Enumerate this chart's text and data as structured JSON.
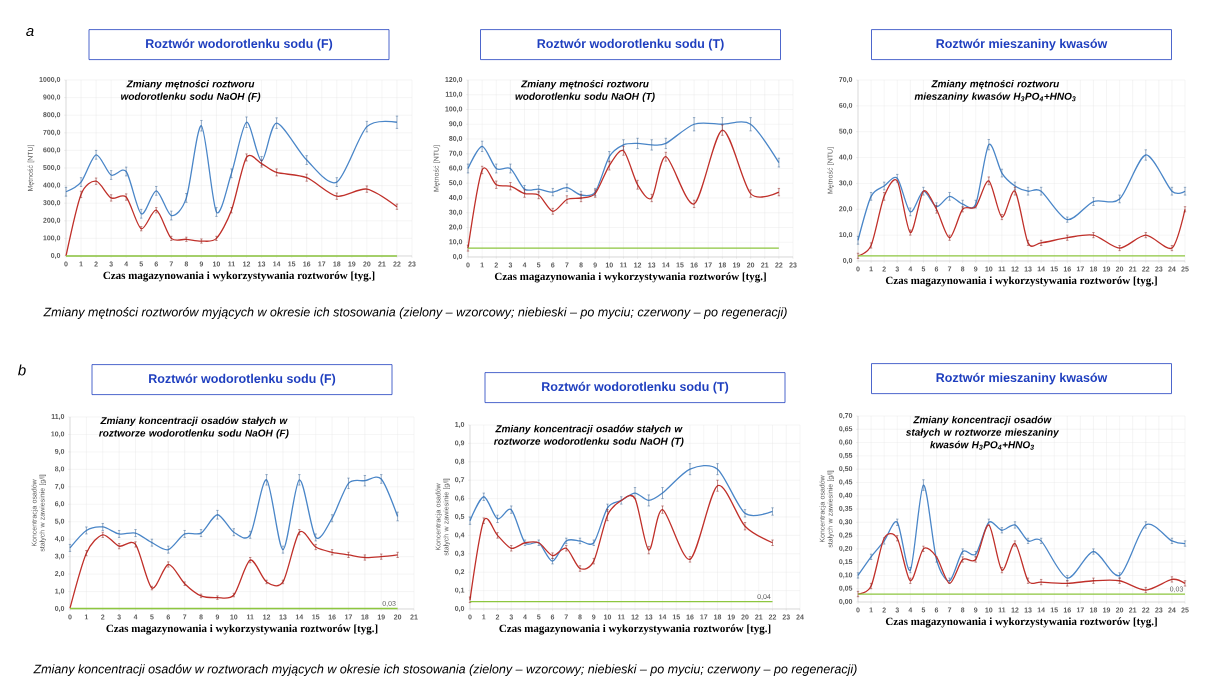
{
  "chart_data": [
    {
      "type": "line",
      "title": "Roztwór  wodorotlenku sodu (F)",
      "subtitle": "Zmiany mętności roztworu wodorotlenku sodu NaOH (F)",
      "xlabel": "Czas magazynowania i wykorzystywania roztworów [tyg.]",
      "ylabel": "Mętność [NTU]",
      "xlim": [
        0,
        23
      ],
      "xticks": [
        0,
        1,
        2,
        3,
        4,
        5,
        6,
        7,
        8,
        9,
        10,
        11,
        12,
        13,
        14,
        15,
        16,
        17,
        18,
        19,
        20,
        21,
        22,
        23
      ],
      "ylim": [
        0,
        1000
      ],
      "yticks": [
        {
          "value": 0,
          "label": "0,0"
        },
        {
          "value": 100,
          "label": "100,0"
        },
        {
          "value": 200,
          "label": "200,0"
        },
        {
          "value": 300,
          "label": "300,0"
        },
        {
          "value": 400,
          "label": "400,0"
        },
        {
          "value": 500,
          "label": "500,0"
        },
        {
          "value": 600,
          "label": "600,0"
        },
        {
          "value": 700,
          "label": "700,0"
        },
        {
          "value": 800,
          "label": "800,0"
        },
        {
          "value": 900,
          "label": "900,0"
        },
        {
          "value": 1000,
          "label": "1000,0"
        }
      ],
      "grid": true,
      "series": [
        {
          "color": "#4a86c8",
          "x": [
            0,
            1,
            2,
            3,
            4,
            5,
            6,
            7,
            8,
            9,
            10,
            11,
            12,
            13,
            14,
            16,
            18,
            20,
            22
          ],
          "values": [
            365,
            420,
            575,
            460,
            480,
            240,
            370,
            230,
            330,
            740,
            250,
            470,
            760,
            540,
            755,
            545,
            420,
            735,
            760
          ],
          "errors": [
            25,
            25,
            25,
            25,
            25,
            25,
            25,
            25,
            25,
            30,
            25,
            25,
            30,
            25,
            30,
            25,
            25,
            30,
            35
          ]
        },
        {
          "color": "#c0302a",
          "x": [
            0,
            1,
            2,
            3,
            4,
            5,
            6,
            7,
            8,
            9,
            10,
            11,
            12,
            13,
            14,
            16,
            18,
            20,
            22
          ],
          "values": [
            0,
            350,
            425,
            330,
            335,
            155,
            260,
            100,
            95,
            85,
            100,
            260,
            560,
            525,
            475,
            445,
            340,
            380,
            280
          ],
          "errors": [
            null,
            18,
            18,
            18,
            18,
            12,
            15,
            12,
            12,
            12,
            12,
            15,
            20,
            20,
            20,
            20,
            18,
            18,
            15
          ]
        },
        {
          "color": "#8dc63f",
          "x": [
            0,
            22
          ],
          "values": [
            0,
            0
          ]
        }
      ],
      "annotations": [
        "a",
        "Zmiany mętności roztworów myjących w okresie ich stosowania (zielony – wzorcowy; niebieski – po myciu; czerwony – po regeneracji)"
      ]
    },
    {
      "type": "line",
      "title": "Roztwór  wodorotlenku sodu (T)",
      "subtitle": "Zmiany mętności roztworu wodorotlenku sodu NaOH (T)",
      "xlabel": "Czas magazynowania i wykorzystywania roztworów [tyg.]",
      "ylabel": "Mętność [NTU]",
      "xlim": [
        0,
        23
      ],
      "xticks": [
        0,
        1,
        2,
        3,
        4,
        5,
        6,
        7,
        8,
        9,
        10,
        11,
        12,
        13,
        14,
        15,
        16,
        17,
        18,
        19,
        20,
        21,
        22,
        23
      ],
      "ylim": [
        0,
        120
      ],
      "yticks": [
        {
          "value": 0,
          "label": "0,0"
        },
        {
          "value": 10,
          "label": "10,0"
        },
        {
          "value": 20,
          "label": "20,0"
        },
        {
          "value": 30,
          "label": "30,0"
        },
        {
          "value": 40,
          "label": "40,0"
        },
        {
          "value": 50,
          "label": "50,0"
        },
        {
          "value": 60,
          "label": "60,0"
        },
        {
          "value": 70,
          "label": "70,0"
        },
        {
          "value": 80,
          "label": "80,0"
        },
        {
          "value": 90,
          "label": "90,0"
        },
        {
          "value": 100,
          "label": "100,0"
        },
        {
          "value": 110,
          "label": "110,0"
        },
        {
          "value": 120,
          "label": "120,0"
        }
      ],
      "grid": true,
      "series": [
        {
          "color": "#4a86c8",
          "x": [
            0,
            1,
            2,
            3,
            4,
            5,
            6,
            7,
            8,
            9,
            10,
            11,
            12,
            13,
            14,
            16,
            18,
            20,
            22
          ],
          "values": [
            60,
            75,
            60,
            60,
            46,
            46,
            44,
            47,
            42,
            44,
            68,
            76,
            77,
            76,
            77,
            90,
            90,
            90,
            64
          ],
          "errors": [
            3,
            3.5,
            3,
            3,
            2.5,
            2.5,
            2.5,
            2.5,
            2.5,
            2.5,
            3.5,
            3.5,
            3.5,
            3.5,
            3.5,
            4.5,
            4.5,
            4.5,
            3
          ]
        },
        {
          "color": "#c0302a",
          "x": [
            0,
            1,
            2,
            3,
            4,
            5,
            6,
            7,
            8,
            9,
            10,
            11,
            12,
            13,
            14,
            16,
            18,
            20,
            22
          ],
          "values": [
            6,
            59,
            49,
            48,
            43,
            42,
            31,
            39,
            40,
            43,
            62,
            72,
            49,
            40,
            68,
            36,
            86,
            43,
            44
          ],
          "errors": [
            2,
            2.5,
            2.5,
            2.5,
            2.5,
            2.5,
            2,
            2.5,
            2.5,
            2.5,
            3,
            3,
            3,
            2.5,
            3,
            2.5,
            3.5,
            2.5,
            2.5
          ]
        },
        {
          "color": "#8dc63f",
          "x": [
            0,
            22
          ],
          "values": [
            6,
            6
          ]
        }
      ]
    },
    {
      "type": "line",
      "title": "Roztwór mieszaniny kwasów",
      "subtitle": "Zmiany mętności roztworu mieszaniny kwasów H$_{3}$PO$_{4}$+HNO$_{3}$",
      "xlabel": "Czas magazynowania i wykorzystywania roztworów [tyg.]",
      "ylabel": "Mętność [NTU]",
      "xlim": [
        0,
        25
      ],
      "xticks": [
        0,
        1,
        2,
        3,
        4,
        5,
        6,
        7,
        8,
        9,
        10,
        11,
        12,
        13,
        14,
        15,
        16,
        17,
        18,
        19,
        20,
        21,
        22,
        23,
        24,
        25
      ],
      "ylim": [
        0,
        70
      ],
      "yticks": [
        {
          "value": 0,
          "label": "0,0"
        },
        {
          "value": 10,
          "label": "10,0"
        },
        {
          "value": 20,
          "label": "20,0"
        },
        {
          "value": 30,
          "label": "30,0"
        },
        {
          "value": 40,
          "label": "40,0"
        },
        {
          "value": 50,
          "label": "50,0"
        },
        {
          "value": 60,
          "label": "60,0"
        },
        {
          "value": 70,
          "label": "70,0"
        }
      ],
      "grid": true,
      "series": [
        {
          "color": "#4a86c8",
          "x": [
            0,
            1,
            2,
            3,
            4,
            5,
            6,
            7,
            8,
            9,
            10,
            11,
            12,
            13,
            14,
            16,
            18,
            20,
            22,
            24,
            25
          ],
          "values": [
            8,
            25,
            29,
            32,
            19,
            27,
            21,
            25,
            22,
            22,
            45,
            34,
            29,
            27,
            27,
            16,
            23,
            24,
            41,
            27,
            27
          ],
          "errors": [
            1.5,
            1.5,
            1.5,
            1.5,
            1.5,
            1.5,
            1.5,
            1.5,
            1.5,
            1.5,
            2,
            1.5,
            1.5,
            1.5,
            1.5,
            1,
            1.5,
            1.5,
            2,
            1.5,
            1.5
          ]
        },
        {
          "color": "#c0302a",
          "x": [
            0,
            1,
            2,
            3,
            4,
            5,
            6,
            7,
            8,
            9,
            10,
            11,
            12,
            13,
            14,
            16,
            18,
            20,
            22,
            24,
            25
          ],
          "values": [
            2,
            6,
            25,
            31,
            11,
            27,
            20,
            9,
            20,
            21,
            31,
            17,
            27,
            7,
            7,
            9,
            10,
            5,
            10,
            5,
            20
          ],
          "errors": [
            1,
            1,
            1.5,
            null,
            1,
            null,
            1.5,
            1,
            1,
            null,
            1.5,
            1,
            1.5,
            1,
            1,
            1,
            1,
            1,
            1,
            1,
            1
          ]
        },
        {
          "color": "#8dc63f",
          "x": [
            0,
            25
          ],
          "values": [
            2,
            2
          ]
        }
      ]
    },
    {
      "type": "line",
      "title": "Roztwór  wodorotlenku sodu (F)",
      "subtitle": "Zmiany koncentracji osadów stałych w roztworze wodorotlenku sodu NaOH (F)",
      "xlabel": "Czas magazynowania i wykorzystywania roztworów [tyg.]",
      "ylabel": "Koncentracja osadów stałych w zawiesinie  [g/l]",
      "xlim": [
        0,
        21
      ],
      "xticks": [
        0,
        1,
        2,
        3,
        4,
        5,
        6,
        7,
        8,
        9,
        10,
        11,
        12,
        13,
        14,
        15,
        16,
        17,
        18,
        19,
        20,
        21
      ],
      "ylim": [
        0,
        11
      ],
      "yticks": [
        {
          "value": 0,
          "label": "0,0"
        },
        {
          "value": 1,
          "label": "1,0"
        },
        {
          "value": 2,
          "label": "2,0"
        },
        {
          "value": 3,
          "label": "3,0"
        },
        {
          "value": 4,
          "label": "4,0"
        },
        {
          "value": 5,
          "label": "5,0"
        },
        {
          "value": 6,
          "label": "6,0"
        },
        {
          "value": 7,
          "label": "7,0"
        },
        {
          "value": 8,
          "label": "8,0"
        },
        {
          "value": 9,
          "label": "9,0"
        },
        {
          "value": 10,
          "label": "10,0"
        },
        {
          "value": 11,
          "label": "11,0"
        }
      ],
      "grid": true,
      "series": [
        {
          "color": "#4a86c8",
          "x": [
            0,
            1,
            2,
            3,
            4,
            5,
            6,
            7,
            8,
            9,
            10,
            11,
            12,
            13,
            14,
            15,
            16,
            17,
            18,
            19,
            20
          ],
          "values": [
            3.5,
            4.5,
            4.7,
            4.3,
            4.35,
            3.8,
            3.4,
            4.3,
            4.35,
            5.4,
            4.4,
            4.25,
            7.4,
            3.4,
            7.4,
            4.1,
            5.2,
            7.2,
            7.35,
            7.45,
            5.3
          ],
          "errors": [
            0.2,
            0.2,
            0.2,
            0.2,
            0.2,
            0.2,
            0.2,
            0.2,
            0.2,
            0.25,
            0.2,
            0.2,
            0.3,
            0.2,
            0.3,
            0.2,
            0.2,
            0.3,
            0.3,
            0.25,
            0.25
          ]
        },
        {
          "color": "#c0302a",
          "x": [
            0,
            1,
            2,
            3,
            4,
            5,
            6,
            7,
            8,
            9,
            10,
            11,
            12,
            13,
            14,
            15,
            16,
            17,
            18,
            19,
            20
          ],
          "values": [
            0.05,
            3.2,
            4.25,
            3.6,
            3.7,
            1.2,
            2.55,
            1.45,
            0.75,
            0.65,
            0.8,
            2.8,
            1.55,
            1.55,
            4.4,
            3.55,
            3.25,
            3.1,
            2.95,
            3.0,
            3.1
          ],
          "errors": [
            null,
            0.15,
            0.15,
            0.15,
            0.15,
            0.1,
            0.15,
            0.1,
            0.1,
            0.1,
            0.1,
            0.15,
            0.1,
            0.1,
            0.15,
            0.15,
            0.15,
            0.15,
            0.15,
            0.15,
            0.15
          ]
        },
        {
          "color": "#8dc63f",
          "x": [
            0,
            20
          ],
          "values": [
            0.03,
            0.03
          ]
        }
      ],
      "annotations": [
        "b",
        "Zmiany koncentracji osadów w roztworach myjących w okresie ich stosowania (zielony – wzorcowy; niebieski – po myciu; czerwony – po regeneracji)",
        {
          "text": "0,03",
          "x": 20,
          "y": 0.03
        }
      ]
    },
    {
      "type": "line",
      "title": "Roztwór  wodorotlenku sodu (T)",
      "subtitle": "Zmiany koncentracji osadów stałych w roztworze wodorotlenku sodu NaOH (T)",
      "xlabel": "Czas magazynowania i wykorzystywania roztworów [tyg.]",
      "ylabel": "Koncentracja osadów stałych w zawiesinie  [g/l]",
      "xlim": [
        0,
        24
      ],
      "xticks": [
        0,
        1,
        2,
        3,
        4,
        5,
        6,
        7,
        8,
        9,
        10,
        11,
        12,
        13,
        14,
        15,
        16,
        17,
        18,
        19,
        20,
        21,
        22,
        23,
        24
      ],
      "ylim": [
        0,
        1
      ],
      "yticks": [
        {
          "value": 0,
          "label": "0,0"
        },
        {
          "value": 0.1,
          "label": "0,1"
        },
        {
          "value": 0.2,
          "label": "0,2"
        },
        {
          "value": 0.3,
          "label": "0,3"
        },
        {
          "value": 0.4,
          "label": "0,4"
        },
        {
          "value": 0.5,
          "label": "0,5"
        },
        {
          "value": 0.6,
          "label": "0,6"
        },
        {
          "value": 0.7,
          "label": "0,7"
        },
        {
          "value": 0.8,
          "label": "0,8"
        },
        {
          "value": 0.9,
          "label": "0,9"
        },
        {
          "value": 1,
          "label": "1,0"
        }
      ],
      "grid": true,
      "series": [
        {
          "color": "#4a86c8",
          "x": [
            0,
            1,
            2,
            3,
            4,
            5,
            6,
            7,
            8,
            9,
            10,
            11,
            12,
            13,
            14,
            16,
            18,
            20,
            22
          ],
          "values": [
            0.48,
            0.61,
            0.49,
            0.54,
            0.36,
            0.36,
            0.26,
            0.37,
            0.37,
            0.36,
            0.55,
            0.59,
            0.63,
            0.59,
            0.63,
            0.76,
            0.76,
            0.52,
            0.53
          ],
          "errors": [
            0.02,
            0.02,
            0.02,
            0.02,
            0.015,
            0.015,
            0.015,
            0.015,
            0.015,
            0.015,
            0.02,
            0.02,
            0.03,
            0.03,
            0.03,
            0.03,
            0.03,
            0.02,
            0.02
          ]
        },
        {
          "color": "#c0302a",
          "x": [
            0,
            1,
            2,
            3,
            4,
            5,
            6,
            7,
            8,
            9,
            10,
            11,
            12,
            13,
            14,
            16,
            18,
            20,
            22
          ],
          "values": [
            0.05,
            0.48,
            0.4,
            0.33,
            0.36,
            0.36,
            0.29,
            0.33,
            0.22,
            0.26,
            0.51,
            0.59,
            0.6,
            0.32,
            0.54,
            0.27,
            0.67,
            0.45,
            0.36
          ],
          "errors": [
            0.015,
            0.015,
            0.015,
            0.015,
            null,
            null,
            0.015,
            0.015,
            0.015,
            0.015,
            0.03,
            null,
            null,
            0.02,
            0.02,
            0.015,
            0.03,
            0.02,
            0.015
          ]
        },
        {
          "color": "#8dc63f",
          "x": [
            0,
            22
          ],
          "values": [
            0.04,
            0.04
          ]
        }
      ],
      "annotations": [
        {
          "text": "0,04",
          "x": 22,
          "y": 0.04
        }
      ]
    },
    {
      "type": "line",
      "title": "Roztwór mieszaniny kwasów",
      "subtitle": "Zmiany koncentracji osadów stałych w roztworze mieszaniny kwasów H$_{3}$PO$_{4}$+HNO$_{3}$",
      "xlabel": "Czas magazynowania i wykorzystywania roztworów [tyg.]",
      "ylabel": "Koncentracja osadów stałych w zawiesinie  [g/l]",
      "xlim": [
        0,
        25
      ],
      "xticks": [
        0,
        1,
        2,
        3,
        4,
        5,
        6,
        7,
        8,
        9,
        10,
        11,
        12,
        13,
        14,
        15,
        16,
        17,
        18,
        19,
        20,
        21,
        22,
        23,
        24,
        25
      ],
      "ylim": [
        0,
        0.7
      ],
      "yticks": [
        {
          "value": 0,
          "label": "0,00"
        },
        {
          "value": 0.05,
          "label": "0,05"
        },
        {
          "value": 0.1,
          "label": "0,10"
        },
        {
          "value": 0.15,
          "label": "0,15"
        },
        {
          "value": 0.2,
          "label": "0,20"
        },
        {
          "value": 0.25,
          "label": "0,25"
        },
        {
          "value": 0.3,
          "label": "0,30"
        },
        {
          "value": 0.35,
          "label": "0,35"
        },
        {
          "value": 0.4,
          "label": "0,40"
        },
        {
          "value": 0.45,
          "label": "0,45"
        },
        {
          "value": 0.5,
          "label": "0,50"
        },
        {
          "value": 0.55,
          "label": "0,55"
        },
        {
          "value": 0.6,
          "label": "0,60"
        },
        {
          "value": 0.65,
          "label": "0,65"
        },
        {
          "value": 0.7,
          "label": "0,70"
        }
      ],
      "grid": true,
      "series": [
        {
          "color": "#4a86c8",
          "x": [
            0,
            1,
            2,
            3,
            4,
            5,
            6,
            7,
            8,
            9,
            10,
            11,
            12,
            13,
            14,
            16,
            18,
            20,
            22,
            24,
            25
          ],
          "values": [
            0.1,
            0.17,
            0.23,
            0.3,
            0.12,
            0.44,
            0.16,
            0.08,
            0.19,
            0.18,
            0.3,
            0.27,
            0.29,
            0.23,
            0.23,
            0.09,
            0.19,
            0.1,
            0.29,
            0.23,
            0.22
          ],
          "errors": [
            0.01,
            0.01,
            0.012,
            0.012,
            0.01,
            0.02,
            0.01,
            0.01,
            0.01,
            0.01,
            0.012,
            0.01,
            0.012,
            0.01,
            0.01,
            0.01,
            0.01,
            0.01,
            0.012,
            0.01,
            0.01
          ]
        },
        {
          "color": "#c0302a",
          "x": [
            0,
            1,
            2,
            3,
            4,
            5,
            6,
            7,
            8,
            9,
            10,
            11,
            12,
            13,
            14,
            16,
            18,
            20,
            22,
            24,
            25
          ],
          "values": [
            0.03,
            0.06,
            0.24,
            0.24,
            0.08,
            0.2,
            0.17,
            0.07,
            0.16,
            0.16,
            0.29,
            0.12,
            0.22,
            0.08,
            0.075,
            0.07,
            0.08,
            0.08,
            0.045,
            0.085,
            0.07
          ],
          "errors": [
            0.01,
            0.01,
            null,
            0.01,
            0.01,
            0.01,
            null,
            null,
            0.01,
            0.01,
            null,
            0.01,
            0.01,
            0.01,
            0.01,
            0.01,
            0.01,
            0.01,
            0.01,
            0.01,
            0.01
          ]
        },
        {
          "color": "#8dc63f",
          "x": [
            0,
            25
          ],
          "values": [
            0.03,
            0.03
          ]
        }
      ],
      "annotations": [
        {
          "text": "0,03",
          "x": 25,
          "y": 0.03
        }
      ]
    }
  ]
}
